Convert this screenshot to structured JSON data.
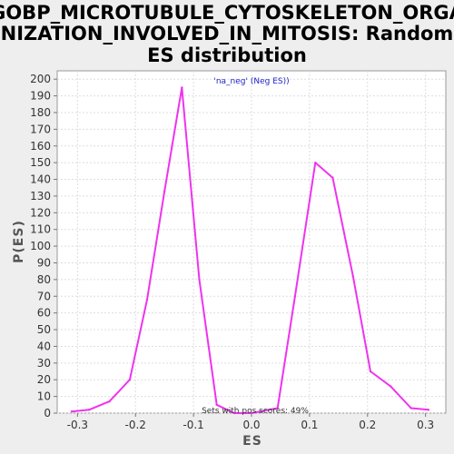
{
  "title_line1": "GOBP_MICROTUBULE_CYTOSKELETON_ORGA",
  "title_line2": "NIZATION_INVOLVED_IN_MITOSIS: Random",
  "title_line3": "ES distribution",
  "colors": {
    "background": "#eeeeee",
    "plot_background": "#ffffff",
    "line": "#ee33ee",
    "grid": "#dddddd",
    "legend_text": "#2222cc"
  },
  "chart_data": {
    "type": "line",
    "title": "GOBP_MICROTUBULE_CYTOSKELETON_ORGANIZATION_INVOLVED_IN_MITOSIS: Random ES distribution",
    "xlabel": "ES",
    "ylabel": "P(ES)",
    "xlim": [
      -0.335,
      0.335
    ],
    "ylim": [
      0,
      205
    ],
    "grid": true,
    "x_ticks": [
      -0.3,
      -0.2,
      -0.1,
      0.0,
      0.1,
      0.2,
      0.3
    ],
    "x_tick_labels": [
      "-0.3",
      "-0.2",
      "-0.1",
      "0.0",
      "0.1",
      "0.2",
      "0.3"
    ],
    "y_ticks": [
      0,
      10,
      20,
      30,
      40,
      50,
      60,
      70,
      80,
      90,
      100,
      110,
      120,
      130,
      140,
      150,
      160,
      170,
      180,
      190,
      200
    ],
    "y_tick_labels": [
      "0",
      "10",
      "20",
      "30",
      "40",
      "50",
      "60",
      "70",
      "80",
      "90",
      "100",
      "110",
      "120",
      "130",
      "140",
      "150",
      "160",
      "170",
      "180",
      "190",
      "200"
    ],
    "legend": "'na_neg' (Neg ES))",
    "legend_position": "top-center",
    "annotation": "Sets with pos scores: 49%",
    "series": [
      {
        "x": [
          -0.31,
          -0.28,
          -0.245,
          -0.21,
          -0.18,
          -0.15,
          -0.12,
          -0.09,
          -0.06,
          -0.03,
          0.0,
          0.045,
          0.075,
          0.11,
          0.14,
          0.175,
          0.205,
          0.24,
          0.275,
          0.305
        ],
        "values": [
          1,
          2,
          7,
          20,
          68,
          133,
          195,
          80,
          5,
          0,
          0,
          3,
          70,
          150,
          141,
          82,
          25,
          16,
          3,
          2
        ]
      }
    ]
  }
}
